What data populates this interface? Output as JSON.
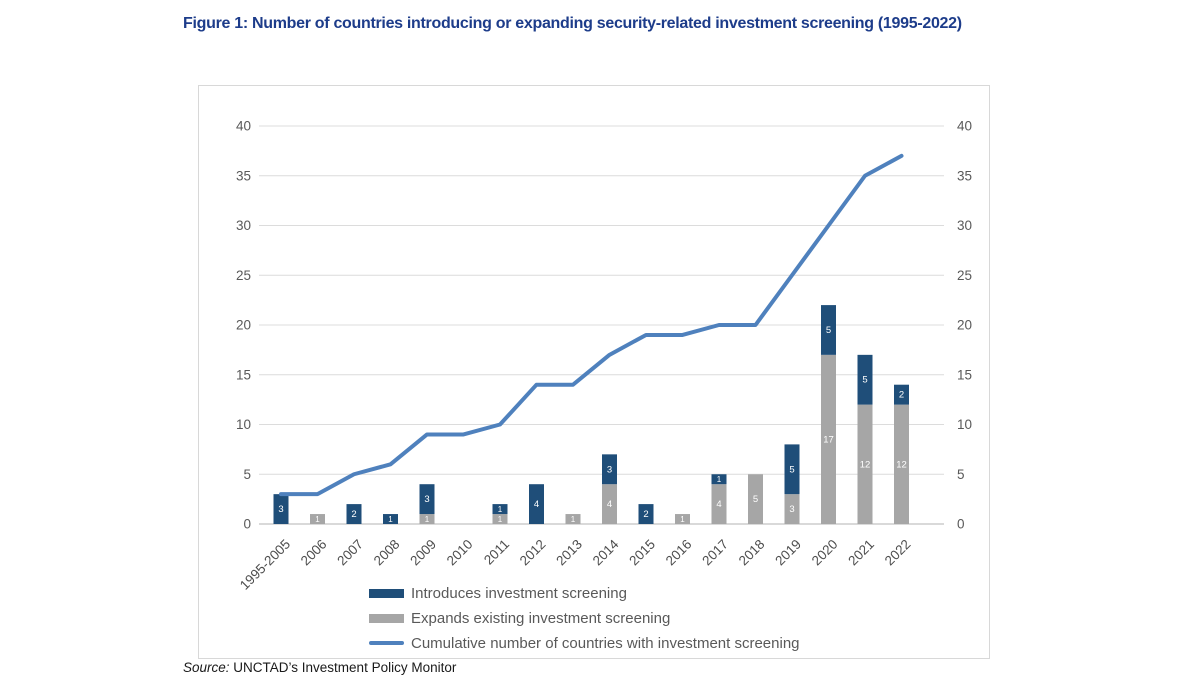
{
  "figure": {
    "title": "Figure 1: Number of countries introducing or expanding security-related investment screening (1995-2022)",
    "source_label": "Source:",
    "source_text": " UNCTAD’s Investment Policy Monitor"
  },
  "colors": {
    "title_text": "#1d3c8a",
    "introduces": "#1F4E79",
    "expands": "#A6A6A6",
    "line": "#4F81BD",
    "grid": "#dcdcdc",
    "axis_line": "#b3b3b3",
    "axis_text": "#595959",
    "legend_text": "#595959",
    "bar_label": "#ffffff",
    "source_text": "#1a1a1a"
  },
  "chart_data": {
    "type": "bar",
    "subtype": "stacked-bars-with-cumulative-line",
    "categories": [
      "1995-2005",
      "2006",
      "2007",
      "2008",
      "2009",
      "2010",
      "2011",
      "2012",
      "2013",
      "2014",
      "2015",
      "2016",
      "2017",
      "2018",
      "2019",
      "2020",
      "2021",
      "2022"
    ],
    "series": [
      {
        "name": "Introduces investment screening",
        "type": "bar",
        "stack": "top",
        "color_key": "introduces",
        "values": [
          3,
          0,
          2,
          1,
          3,
          0,
          1,
          4,
          0,
          3,
          2,
          0,
          1,
          0,
          5,
          5,
          5,
          2
        ]
      },
      {
        "name": "Expands existing investment screening",
        "type": "bar",
        "stack": "bottom",
        "color_key": "expands",
        "values": [
          0,
          1,
          0,
          0,
          1,
          0,
          1,
          0,
          1,
          4,
          0,
          1,
          4,
          5,
          3,
          17,
          12,
          12
        ]
      },
      {
        "name": "Cumulative number of countries with investment screening",
        "type": "line",
        "color_key": "line",
        "values": [
          3,
          3,
          5,
          6,
          9,
          9,
          10,
          14,
          14,
          17,
          19,
          19,
          20,
          20,
          25,
          30,
          35,
          37
        ]
      }
    ],
    "title": "Figure 1: Number of countries introducing or expanding security-related investment screening (1995-2022)",
    "xlabel": "",
    "ylabel": "",
    "ylim": [
      0,
      40
    ],
    "ytick_step": 5,
    "y_axis_sides": "both",
    "grid": true,
    "bar_value_labels": true,
    "legend_position": "bottom"
  }
}
